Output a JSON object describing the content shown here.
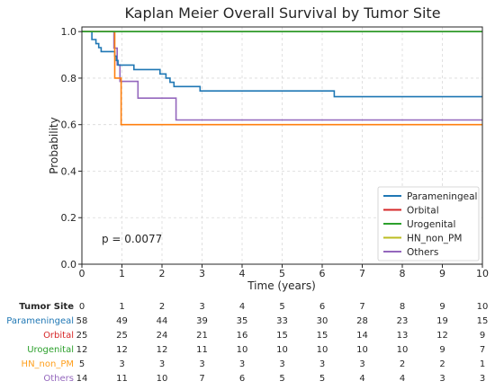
{
  "chart_data": {
    "type": "line",
    "title": "Kaplan Meier Overall Survival by Tumor Site",
    "xlabel": "Time (years)",
    "ylabel": "Probability",
    "xlim": [
      0,
      10
    ],
    "ylim": [
      0,
      1.02
    ],
    "x_ticks": [
      0,
      1,
      2,
      3,
      4,
      5,
      6,
      7,
      8,
      9,
      10
    ],
    "y_ticks": [
      "0.0",
      "0.2",
      "0.4",
      "0.6",
      "0.8",
      "1.0"
    ],
    "grid": true,
    "legend_position": "bottom-right",
    "p_value_text": "p = 0.0077",
    "series": [
      {
        "name": "Parameningeal",
        "color": "#1f77b4",
        "steps": [
          [
            0,
            1.0
          ],
          [
            0.25,
            1.0
          ],
          [
            0.25,
            0.966
          ],
          [
            0.35,
            0.966
          ],
          [
            0.35,
            0.948
          ],
          [
            0.42,
            0.948
          ],
          [
            0.42,
            0.931
          ],
          [
            0.48,
            0.931
          ],
          [
            0.48,
            0.914
          ],
          [
            0.82,
            0.914
          ],
          [
            0.82,
            0.895
          ],
          [
            0.86,
            0.895
          ],
          [
            0.86,
            0.876
          ],
          [
            0.9,
            0.876
          ],
          [
            0.9,
            0.856
          ],
          [
            1.3,
            0.856
          ],
          [
            1.3,
            0.837
          ],
          [
            1.95,
            0.837
          ],
          [
            1.95,
            0.818
          ],
          [
            2.1,
            0.818
          ],
          [
            2.1,
            0.8
          ],
          [
            2.2,
            0.8
          ],
          [
            2.2,
            0.782
          ],
          [
            2.3,
            0.782
          ],
          [
            2.3,
            0.764
          ],
          [
            2.95,
            0.764
          ],
          [
            2.95,
            0.745
          ],
          [
            6.3,
            0.745
          ],
          [
            6.3,
            0.72
          ],
          [
            10,
            0.72
          ]
        ]
      },
      {
        "name": "Orbital",
        "color": "#d62728",
        "steps": [
          [
            0,
            1.0
          ],
          [
            10,
            1.0
          ]
        ]
      },
      {
        "name": "Urogenital",
        "color": "#2ca02c",
        "steps": [
          [
            0,
            1.0
          ],
          [
            10,
            1.0
          ]
        ]
      },
      {
        "name": "HN_non_PM",
        "color": "#bcbd22",
        "steps": [
          [
            0,
            1.0
          ],
          [
            0.82,
            1.0
          ],
          [
            0.82,
            0.8
          ],
          [
            0.98,
            0.8
          ],
          [
            0.98,
            0.6
          ],
          [
            10,
            0.6
          ]
        ]
      },
      {
        "name": "Others",
        "color": "#9467bd",
        "steps": [
          [
            0,
            1.0
          ],
          [
            0.8,
            1.0
          ],
          [
            0.8,
            0.929
          ],
          [
            0.88,
            0.929
          ],
          [
            0.88,
            0.857
          ],
          [
            0.95,
            0.857
          ],
          [
            0.95,
            0.786
          ],
          [
            1.4,
            0.786
          ],
          [
            1.4,
            0.714
          ],
          [
            2.35,
            0.714
          ],
          [
            2.35,
            0.62
          ],
          [
            10,
            0.62
          ]
        ]
      }
    ],
    "overlay_curves": [
      {
        "name": "HN_non_PM (orange)",
        "color": "#ff7f0e",
        "steps": [
          [
            0,
            1.0
          ],
          [
            0.82,
            1.0
          ],
          [
            0.82,
            0.8
          ],
          [
            0.98,
            0.8
          ],
          [
            0.98,
            0.6
          ],
          [
            10,
            0.6
          ]
        ]
      },
      {
        "name": "Orbital (green top)",
        "color": "#2ca02c",
        "steps": [
          [
            0,
            1.0
          ],
          [
            10,
            1.0
          ]
        ]
      }
    ]
  },
  "risk_table": {
    "header": "Tumor Site",
    "times": [
      "0",
      "1",
      "2",
      "3",
      "4",
      "5",
      "6",
      "7",
      "8",
      "9",
      "10"
    ],
    "rows": [
      {
        "label": "Parameningeal",
        "color": "#1f77b4",
        "values": [
          "58",
          "49",
          "44",
          "39",
          "35",
          "33",
          "30",
          "28",
          "23",
          "19",
          "15"
        ]
      },
      {
        "label": "Orbital",
        "color": "#d62728",
        "values": [
          "25",
          "25",
          "24",
          "21",
          "16",
          "15",
          "15",
          "14",
          "13",
          "12",
          "9"
        ]
      },
      {
        "label": "Urogenital",
        "color": "#2ca02c",
        "values": [
          "12",
          "12",
          "12",
          "11",
          "10",
          "10",
          "10",
          "10",
          "10",
          "9",
          "7"
        ]
      },
      {
        "label": "HN_non_PM",
        "color": "#ff9f1c",
        "values": [
          "5",
          "3",
          "3",
          "3",
          "3",
          "3",
          "3",
          "3",
          "2",
          "2",
          "1"
        ]
      },
      {
        "label": "Others",
        "color": "#9467bd",
        "values": [
          "14",
          "11",
          "10",
          "7",
          "6",
          "5",
          "5",
          "4",
          "4",
          "3",
          "3"
        ]
      }
    ]
  }
}
